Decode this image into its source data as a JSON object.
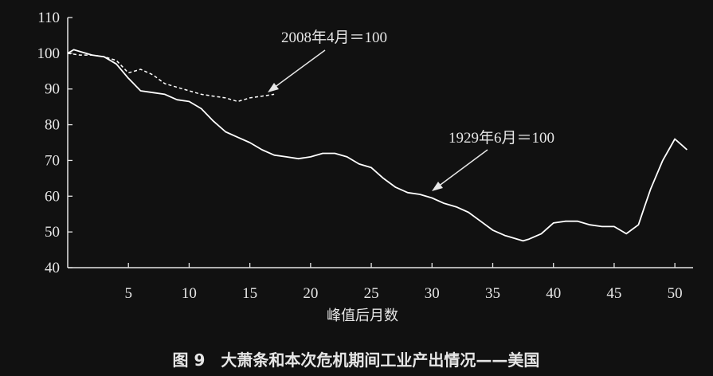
{
  "chart_data": {
    "type": "line",
    "title": "",
    "xlabel": "峰值后月数",
    "ylabel": "",
    "caption": "图 9　大萧条和本次危机期间工业产出情况——美国",
    "xlim": [
      0,
      51.5
    ],
    "ylim": [
      40,
      110
    ],
    "x_ticks": [
      5,
      10,
      15,
      20,
      25,
      30,
      35,
      40,
      45,
      50
    ],
    "y_ticks": [
      40,
      50,
      60,
      70,
      80,
      90,
      100,
      110
    ],
    "grid": false,
    "legend": "none",
    "series": [
      {
        "name": "1929年6月＝100",
        "style": "solid",
        "x": [
          0,
          0.5,
          1,
          2,
          3,
          4,
          5,
          6,
          7,
          8,
          9,
          10,
          11,
          12,
          13,
          14,
          15,
          16,
          17,
          18,
          19,
          20,
          21,
          22,
          23,
          24,
          25,
          26,
          27,
          28,
          29,
          30,
          31,
          32,
          33,
          34,
          35,
          36,
          37,
          37.5,
          38,
          39,
          40,
          41,
          42,
          43,
          44,
          45,
          46,
          47,
          47.5,
          48,
          49,
          50,
          50.5,
          51
        ],
        "values": [
          100,
          101,
          100.5,
          99.5,
          99,
          97,
          93,
          89.5,
          89,
          88.5,
          87,
          86.5,
          84.5,
          81,
          78,
          76.5,
          75,
          73,
          71.5,
          71,
          70.5,
          71,
          72,
          72,
          71,
          69,
          68,
          65,
          62.5,
          61,
          60.5,
          59.5,
          58,
          57,
          55.5,
          53,
          50.5,
          49,
          48,
          47.5,
          48,
          49.5,
          52.5,
          53,
          53,
          52,
          51.5,
          51.5,
          49.5,
          52,
          57,
          62,
          70,
          76,
          74.5,
          73
        ]
      },
      {
        "name": "2008年4月＝100",
        "style": "dashed",
        "x": [
          0,
          1,
          2,
          3,
          4,
          5,
          6,
          7,
          8,
          9,
          10,
          11,
          12,
          13,
          14,
          15,
          16,
          17
        ],
        "values": [
          100,
          99.5,
          99.5,
          99,
          98,
          94.5,
          95.5,
          94,
          91.5,
          90.5,
          89.5,
          88.5,
          88,
          87.5,
          86.5,
          87.5,
          88,
          88.5
        ]
      }
    ],
    "annotations": [
      {
        "text": "2008年4月＝100",
        "series": "2008年4月＝100"
      },
      {
        "text": "1929年6月＝100",
        "series": "1929年6月＝100"
      }
    ]
  }
}
